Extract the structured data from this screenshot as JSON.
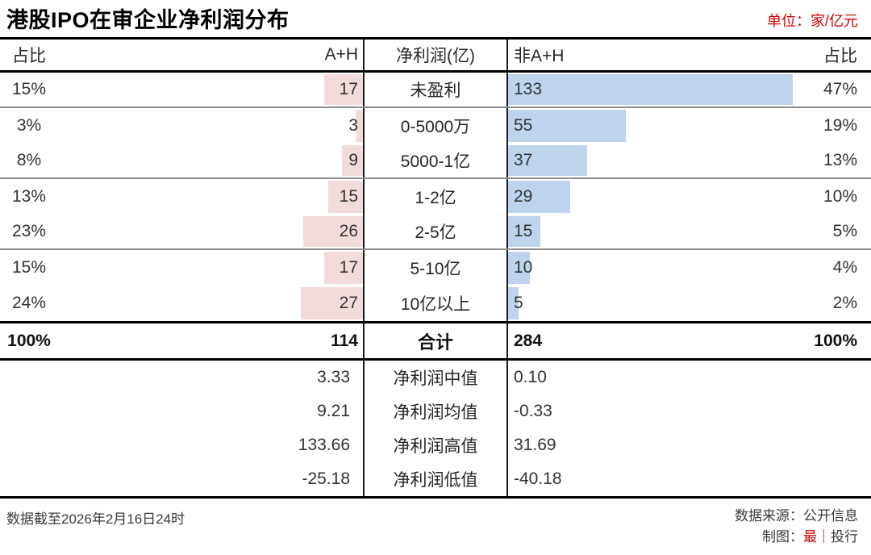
{
  "header": {
    "title": "港股IPO在审企业净利润分布",
    "unit_note": "单位：家/亿元"
  },
  "table": {
    "columns": {
      "left_pct": "占比",
      "left_count": "A+H",
      "category": "净利润(亿)",
      "right_count": "非A+H",
      "right_pct": "占比"
    }
  },
  "chart_data": {
    "type": "bar",
    "subtype": "diverging-table-bars",
    "title": "港股IPO在审企业净利润分布",
    "unit": "家/亿元",
    "categories": [
      "未盈利",
      "0-5000万",
      "5000-1亿",
      "1-2亿",
      "2-5亿",
      "5-10亿",
      "10亿以上"
    ],
    "series": [
      {
        "name": "A+H",
        "values": [
          17,
          3,
          9,
          15,
          26,
          17,
          27
        ],
        "pcts": [
          "15%",
          "3%",
          "8%",
          "13%",
          "23%",
          "15%",
          "24%"
        ],
        "total": 114,
        "total_pct": "100%",
        "bar_color": "#f2dcdb",
        "bar_direction": "right-aligned"
      },
      {
        "name": "非A+H",
        "values": [
          133,
          55,
          37,
          29,
          15,
          10,
          5
        ],
        "pcts": [
          "47%",
          "19%",
          "13%",
          "10%",
          "5%",
          "4%",
          "2%"
        ],
        "total": 284,
        "total_pct": "100%",
        "bar_color": "#bdd4ec",
        "bar_direction": "left-aligned"
      }
    ],
    "total_label": "合计",
    "stats": [
      {
        "label": "净利润中值",
        "a_h": "3.33",
        "non_a_h": "0.10"
      },
      {
        "label": "净利润均值",
        "a_h": "9.21",
        "non_a_h": "-0.33"
      },
      {
        "label": "净利润高值",
        "a_h": "133.66",
        "non_a_h": "31.69"
      },
      {
        "label": "净利润低值",
        "a_h": "-25.18",
        "non_a_h": "-40.18"
      }
    ],
    "group_separators_after_rows": [
      0,
      2,
      4
    ],
    "legend_position": "none",
    "grid": false
  },
  "footer": {
    "left": "数据截至2026年2月16日24时",
    "source_label": "数据来源：公开信息",
    "credit_prefix": "制图：",
    "credit_brand": "最",
    "credit_divider": "｜",
    "credit_suffix": "投行"
  },
  "colors": {
    "accent_red": "#d40000",
    "bar_pink": "#f2dcdb",
    "bar_blue": "#bdd4ec",
    "line_strong": "#000000",
    "line_group": "#8c8c8c",
    "text": "#333333"
  }
}
